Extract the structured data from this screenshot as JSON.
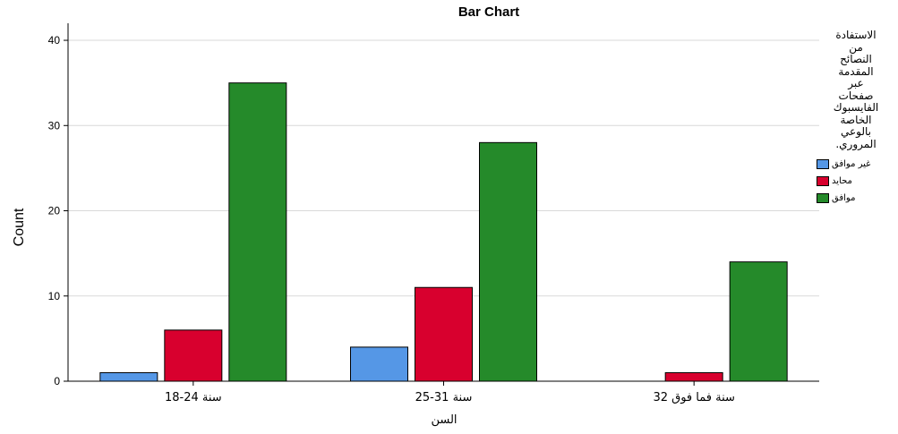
{
  "chart_data": {
    "type": "bar",
    "title": "Bar Chart",
    "xlabel": "السن",
    "ylabel": "Count",
    "categories": [
      "18-24 سنة",
      "25-31 سنة",
      "32 سنة فما فوق"
    ],
    "series": [
      {
        "name": "غير موافق",
        "values": [
          1,
          4,
          0
        ],
        "color": "#5597e6"
      },
      {
        "name": "محايد",
        "values": [
          6,
          11,
          1
        ],
        "color": "#d8002e"
      },
      {
        "name": "موافق",
        "values": [
          35,
          28,
          14
        ],
        "color": "#258a2a"
      }
    ],
    "ylim": [
      0,
      42
    ],
    "yticks": [
      0,
      10,
      20,
      30,
      40
    ],
    "grid": true,
    "legend": {
      "title_lines": [
        "الاستفادة",
        "من",
        "النصائح",
        "المقدمة",
        "عبر",
        "صفحات",
        "الفايسبوك",
        "الخاصة",
        "بالوعي",
        "المروري."
      ],
      "placement": "right"
    }
  }
}
